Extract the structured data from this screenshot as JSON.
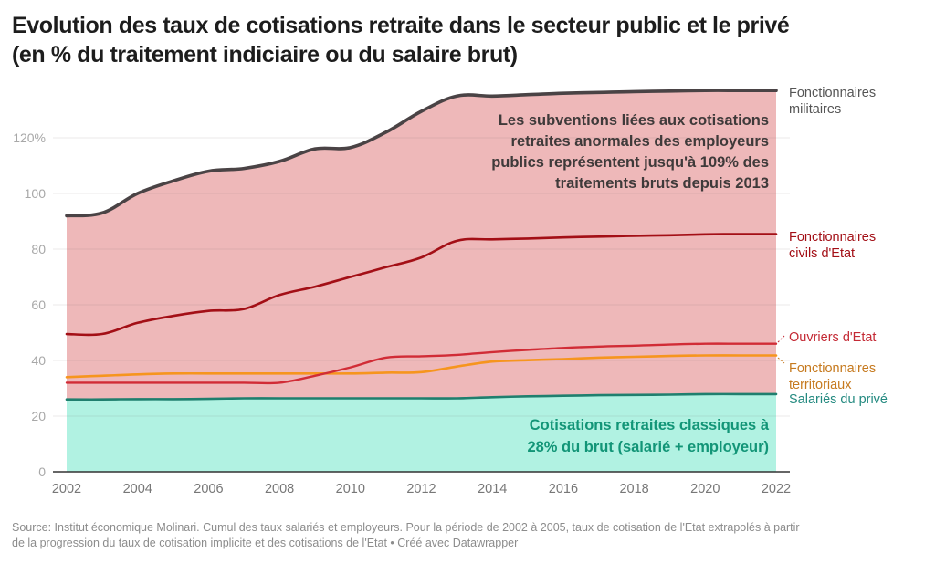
{
  "chart_data": {
    "type": "area",
    "title_line1": "Evolution des taux de cotisations retraite dans le secteur public et le privé",
    "title_line2": "(en % du traitement indiciaire ou du salaire brut)",
    "xlabel": "",
    "ylabel": "",
    "xlim": [
      2002,
      2022
    ],
    "ylim": [
      0,
      140
    ],
    "x_ticks": [
      "2002",
      "2004",
      "2006",
      "2008",
      "2010",
      "2012",
      "2014",
      "2016",
      "2018",
      "2020",
      "2022"
    ],
    "y_ticks": [
      {
        "value": 0,
        "label": "0"
      },
      {
        "value": 20,
        "label": "20"
      },
      {
        "value": 40,
        "label": "40"
      },
      {
        "value": 60,
        "label": "60"
      },
      {
        "value": 80,
        "label": "80"
      },
      {
        "value": 100,
        "label": "100"
      },
      {
        "value": 120,
        "label": "120%"
      }
    ],
    "grid": true,
    "x": [
      2002,
      2003,
      2004,
      2005,
      2006,
      2007,
      2008,
      2009,
      2010,
      2011,
      2012,
      2013,
      2014,
      2015,
      2016,
      2017,
      2018,
      2019,
      2020,
      2021,
      2022
    ],
    "series": [
      {
        "name": "Fonctionnaires militaires",
        "label_lines": [
          "Fonctionnaires",
          "militaires"
        ],
        "color": "#4a4345",
        "label_color": "#555555",
        "fill_below": "#eeb8b9",
        "values": [
          92,
          93,
          100,
          104.5,
          108,
          109,
          111.5,
          116,
          116.5,
          122,
          129.5,
          135,
          135,
          135.5,
          136,
          136.3,
          136.6,
          136.8,
          137,
          137,
          137
        ]
      },
      {
        "name": "Fonctionnaires civils d'Etat",
        "label_lines": [
          "Fonctionnaires",
          "civils d'Etat"
        ],
        "color": "#a30f16",
        "label_color": "#a30f16",
        "values": [
          49.5,
          49.5,
          53.5,
          56,
          57.8,
          58.5,
          63.5,
          66.5,
          70,
          73.5,
          77,
          83,
          83.5,
          83.8,
          84.2,
          84.5,
          84.8,
          85,
          85.3,
          85.4,
          85.4
        ]
      },
      {
        "name": "Ouvriers d'Etat",
        "label_lines": [
          "Ouvriers d'Etat"
        ],
        "color": "#d12c36",
        "label_color": "#c42a35",
        "values": [
          32,
          32,
          32,
          32,
          32,
          32,
          32,
          34.5,
          37.5,
          41,
          41.5,
          42,
          43,
          43.8,
          44.5,
          45,
          45.3,
          45.7,
          46,
          46,
          46
        ]
      },
      {
        "name": "Fonctionnaires territoriaux",
        "label_lines": [
          "Fonctionnaires",
          "territoriaux"
        ],
        "color": "#f6951e",
        "label_color": "#c67a1f",
        "values": [
          34,
          34.5,
          35,
          35.3,
          35.3,
          35.3,
          35.3,
          35.3,
          35.3,
          35.6,
          35.8,
          37.8,
          39.6,
          40.1,
          40.5,
          41,
          41.3,
          41.6,
          41.8,
          41.8,
          41.8
        ]
      },
      {
        "name": "Salariés du privé",
        "label_lines": [
          "Salariés du privé"
        ],
        "color": "#1f7f6e",
        "label_color": "#248a80",
        "fill_below": "#b1f2e2",
        "values": [
          26,
          26,
          26.1,
          26.1,
          26.2,
          26.4,
          26.4,
          26.4,
          26.4,
          26.4,
          26.4,
          26.4,
          26.8,
          27.1,
          27.3,
          27.5,
          27.6,
          27.7,
          27.9,
          27.9,
          27.9
        ]
      }
    ],
    "annotations": [
      {
        "id": "subsidies",
        "lines": [
          "Les subventions liées aux cotisations",
          "retraites anormales des employeurs",
          "publics représentent jusqu'à 109% des",
          "traitements bruts depuis 2013"
        ],
        "color": "#3f3a3a"
      },
      {
        "id": "classic",
        "lines": [
          "Cotisations retraites classiques à",
          "28% du brut (salarié + employeur)"
        ],
        "color": "#129577"
      }
    ]
  },
  "footer": {
    "line1": "Source: Institut économique Molinari. Cumul des taux salariés et employeurs. Pour la période de 2002 à 2005, taux de cotisation de l'Etat extrapolés à partir",
    "line2": "de la progression du taux de cotisation implicite et des cotisations de l'Etat • Créé avec Datawrapper"
  }
}
